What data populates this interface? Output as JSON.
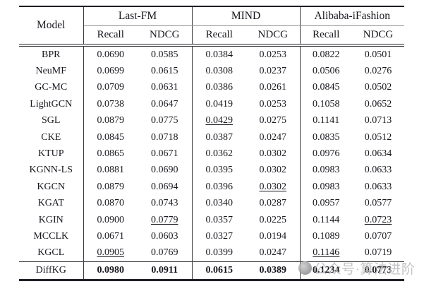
{
  "table": {
    "model_header": "Model",
    "groups": [
      {
        "label": "Last-FM",
        "metrics": [
          "Recall",
          "NDCG"
        ]
      },
      {
        "label": "MIND",
        "metrics": [
          "Recall",
          "NDCG"
        ]
      },
      {
        "label": "Alibaba-iFashion",
        "metrics": [
          "Recall",
          "NDCG"
        ]
      }
    ],
    "rows": [
      {
        "model": "BPR",
        "values": [
          "0.0690",
          "0.0585",
          "0.0384",
          "0.0253",
          "0.0822",
          "0.0501"
        ],
        "underline": [],
        "bold": false
      },
      {
        "model": "NeuMF",
        "values": [
          "0.0699",
          "0.0615",
          "0.0308",
          "0.0237",
          "0.0506",
          "0.0276"
        ],
        "underline": [],
        "bold": false
      },
      {
        "model": "GC-MC",
        "values": [
          "0.0709",
          "0.0631",
          "0.0386",
          "0.0261",
          "0.0845",
          "0.0502"
        ],
        "underline": [],
        "bold": false
      },
      {
        "model": "LightGCN",
        "values": [
          "0.0738",
          "0.0647",
          "0.0419",
          "0.0253",
          "0.1058",
          "0.0652"
        ],
        "underline": [],
        "bold": false
      },
      {
        "model": "SGL",
        "values": [
          "0.0879",
          "0.0775",
          "0.0429",
          "0.0275",
          "0.1141",
          "0.0713"
        ],
        "underline": [
          2
        ],
        "bold": false
      },
      {
        "model": "CKE",
        "values": [
          "0.0845",
          "0.0718",
          "0.0387",
          "0.0247",
          "0.0835",
          "0.0512"
        ],
        "underline": [],
        "bold": false
      },
      {
        "model": "KTUP",
        "values": [
          "0.0865",
          "0.0671",
          "0.0362",
          "0.0302",
          "0.0976",
          "0.0634"
        ],
        "underline": [],
        "bold": false
      },
      {
        "model": "KGNN-LS",
        "values": [
          "0.0881",
          "0.0690",
          "0.0395",
          "0.0302",
          "0.0983",
          "0.0633"
        ],
        "underline": [],
        "bold": false
      },
      {
        "model": "KGCN",
        "values": [
          "0.0879",
          "0.0694",
          "0.0396",
          "0.0302",
          "0.0983",
          "0.0633"
        ],
        "underline": [
          3
        ],
        "bold": false
      },
      {
        "model": "KGAT",
        "values": [
          "0.0870",
          "0.0743",
          "0.0340",
          "0.0287",
          "0.0957",
          "0.0577"
        ],
        "underline": [],
        "bold": false
      },
      {
        "model": "KGIN",
        "values": [
          "0.0900",
          "0.0779",
          "0.0357",
          "0.0225",
          "0.1144",
          "0.0723"
        ],
        "underline": [
          1,
          5
        ],
        "bold": false
      },
      {
        "model": "MCCLK",
        "values": [
          "0.0671",
          "0.0603",
          "0.0327",
          "0.0194",
          "0.1089",
          "0.0707"
        ],
        "underline": [],
        "bold": false
      },
      {
        "model": "KGCL",
        "values": [
          "0.0905",
          "0.0769",
          "0.0399",
          "0.0247",
          "0.1146",
          "0.0719"
        ],
        "underline": [
          0,
          4
        ],
        "bold": false
      },
      {
        "model": "DiffKG",
        "values": [
          "0.0980",
          "0.0911",
          "0.0615",
          "0.0389",
          "0.1234",
          "0.0773"
        ],
        "underline": [],
        "bold": true
      }
    ]
  },
  "watermark": {
    "text": "公众号·算法进阶",
    "color": "#b9b9bc"
  }
}
